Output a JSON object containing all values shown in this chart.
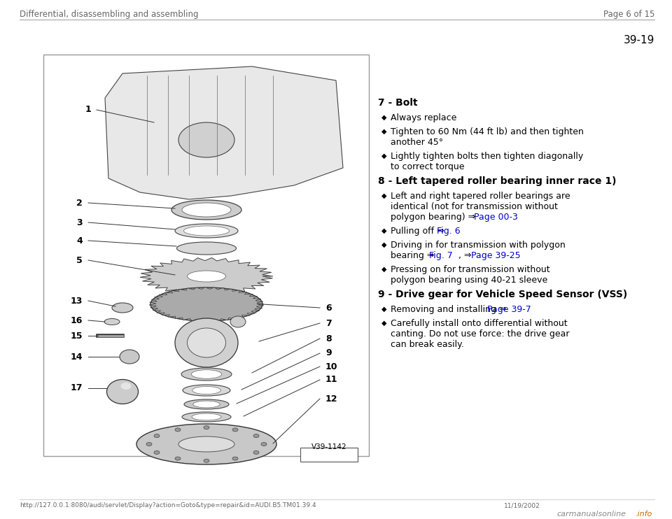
{
  "header_left": "Differential, disassembling and assembling",
  "header_right": "Page 6 of 15",
  "page_number": "39-19",
  "footer_url": "http://127.0.0.1:8080/audi/servlet/Display?action=Goto&type=repair&id=AUDI.B5.TM01.39.4",
  "footer_right": "11/19/2002",
  "diagram_label": "V39-1142",
  "bg_color": "#ffffff",
  "header_color": "#666666",
  "text_color": "#000000",
  "link_color": "#0000cc",
  "section7_title": "7 - Bolt",
  "section8_title": "8 - Left tapered roller bearing inner race 1)",
  "section9_title": "9 - Drive gear for Vehicle Speed Sensor (VSS)"
}
